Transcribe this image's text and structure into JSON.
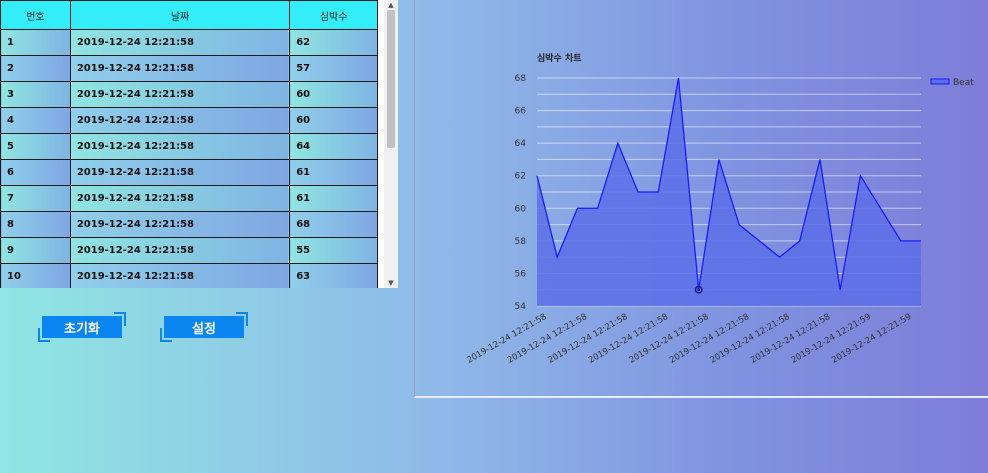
{
  "table": {
    "headers": [
      "번호",
      "날짜",
      "심박수"
    ],
    "rows": [
      {
        "no": "1",
        "date": "2019-12-24 12:21:58",
        "beat": "62"
      },
      {
        "no": "2",
        "date": "2019-12-24 12:21:58",
        "beat": "57"
      },
      {
        "no": "3",
        "date": "2019-12-24 12:21:58",
        "beat": "60"
      },
      {
        "no": "4",
        "date": "2019-12-24 12:21:58",
        "beat": "60"
      },
      {
        "no": "5",
        "date": "2019-12-24 12:21:58",
        "beat": "64"
      },
      {
        "no": "6",
        "date": "2019-12-24 12:21:58",
        "beat": "61"
      },
      {
        "no": "7",
        "date": "2019-12-24 12:21:58",
        "beat": "61"
      },
      {
        "no": "8",
        "date": "2019-12-24 12:21:58",
        "beat": "68"
      },
      {
        "no": "9",
        "date": "2019-12-24 12:21:58",
        "beat": "55"
      },
      {
        "no": "10",
        "date": "2019-12-24 12:21:58",
        "beat": "63"
      }
    ]
  },
  "buttons": {
    "reset": "초기화",
    "settings": "설정"
  },
  "colors": {
    "header_bg": "#33eef8",
    "button_bg": "#0b86f0",
    "series_line": "#1a1aff",
    "series_fill": "#5a6ee8"
  },
  "chart_data": {
    "type": "area",
    "title": "심박수 차트",
    "xlabel": "",
    "ylabel": "",
    "ylim": [
      54,
      68
    ],
    "yticks": [
      54,
      56,
      58,
      60,
      62,
      64,
      66,
      68
    ],
    "grid": true,
    "legend": "top-right",
    "x_tick_labels": [
      "2019-12-24 12:21:58",
      "2019-12-24 12:21:58",
      "2019-12-24 12:21:58",
      "2019-12-24 12:21:58",
      "2019-12-24 12:21:58",
      "2019-12-24 12:21:58",
      "2019-12-24 12:21:58",
      "2019-12-24 12:21:58",
      "2019-12-24 12:21:59",
      "2019-12-24 12:21:59"
    ],
    "series": [
      {
        "name": "Beat",
        "values": [
          62,
          57,
          60,
          60,
          64,
          61,
          61,
          68,
          55,
          63,
          59,
          58,
          57,
          58,
          63,
          55,
          62,
          60,
          58,
          58
        ]
      }
    ],
    "highlighted_point": {
      "index": 8,
      "value": 55
    }
  }
}
